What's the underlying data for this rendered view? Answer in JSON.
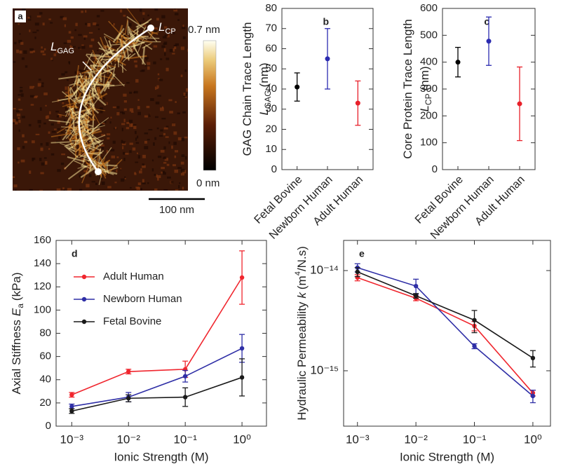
{
  "panel_a": {
    "panel_label": "a",
    "gag_label": {
      "symbol": "L",
      "subscript": "GAG"
    },
    "cp_label": {
      "symbol": "L",
      "subscript": "CP"
    },
    "colorbar_max": "0.7 nm",
    "colorbar_min": "0 nm",
    "scale_bar": "100 nm"
  },
  "chart_data": [
    {
      "type": "errorbar",
      "panel_label": "b",
      "categories": [
        "Fetal Bovine",
        "Newborn Human",
        "Adult Human"
      ],
      "values": [
        41,
        55,
        33
      ],
      "errors": [
        7,
        15,
        11
      ],
      "colors": [
        "#000000",
        "#2b2bb0",
        "#e8202a"
      ],
      "ylabel": {
        "text": "GAG Chain Trace Length",
        "symbol": "L",
        "subscript": "GAG",
        "unit": "(nm)"
      },
      "ylim": [
        0,
        80
      ],
      "yticks": [
        0,
        10,
        20,
        30,
        40,
        50,
        60,
        70,
        80
      ]
    },
    {
      "type": "errorbar",
      "panel_label": "c",
      "categories": [
        "Fetal Bovine",
        "Newborn Human",
        "Adult Human"
      ],
      "values": [
        400,
        478,
        245
      ],
      "errors": [
        55,
        90,
        137
      ],
      "colors": [
        "#000000",
        "#2b2bb0",
        "#e8202a"
      ],
      "ylabel": {
        "text": "Core Protein Trace Length",
        "symbol": "L",
        "subscript": "CP",
        "unit": "(nm)"
      },
      "ylim": [
        0,
        600
      ],
      "yticks": [
        0,
        100,
        200,
        300,
        400,
        500,
        600
      ]
    },
    {
      "type": "line",
      "panel_label": "d",
      "xlog": true,
      "x": [
        0.001,
        0.01,
        0.1,
        1
      ],
      "xlim": [
        0.00053,
        2.7
      ],
      "xticks": [
        {
          "value": 0.001,
          "label": "10⁻³"
        },
        {
          "value": 0.01,
          "label": "10⁻²"
        },
        {
          "value": 0.1,
          "label": "10⁻¹"
        },
        {
          "value": 1,
          "label": "10⁰"
        }
      ],
      "xlabel": "Ionic Strength (M)",
      "ylabel": {
        "text": "Axial Stiffness",
        "symbol": "E",
        "subscript": "a",
        "unit": "(kPa)"
      },
      "ylim": [
        0,
        160
      ],
      "yticks": [
        0,
        20,
        40,
        60,
        80,
        100,
        120,
        140,
        160
      ],
      "legend": "upper left",
      "series": [
        {
          "name": "Adult Human",
          "color": "#f0262e",
          "values": [
            27,
            47,
            49,
            128
          ],
          "errors": [
            2,
            2,
            7,
            23
          ]
        },
        {
          "name": "Newborn Human",
          "color": "#2e2ea6",
          "values": [
            17,
            25,
            43,
            67
          ],
          "errors": [
            2,
            4,
            5,
            12
          ]
        },
        {
          "name": "Fetal Bovine",
          "color": "#1a1a1a",
          "values": [
            13,
            24,
            25,
            42
          ],
          "errors": [
            2,
            3,
            8,
            16
          ]
        }
      ]
    },
    {
      "type": "line",
      "panel_label": "e",
      "xlog": true,
      "ylog": true,
      "x": [
        0.001,
        0.01,
        0.1,
        1
      ],
      "xlim": [
        0.00058,
        2.0
      ],
      "xticks": [
        {
          "value": 0.001,
          "label": "10⁻³"
        },
        {
          "value": 0.01,
          "label": "10⁻²"
        },
        {
          "value": 0.1,
          "label": "10⁻¹"
        },
        {
          "value": 1,
          "label": "10⁰"
        }
      ],
      "xlabel": "Ionic Strength (M)",
      "ylabel": {
        "text": "Hydraulic Permeability",
        "symbol": "k",
        "unit": "(m",
        "unit_superscript": "4",
        "unit_rest": "/N.s)"
      },
      "ylim": [
        2.8e-16,
        2e-14
      ],
      "yticks": [
        {
          "value": 1e-15,
          "label": "10⁻¹⁵"
        },
        {
          "value": 1e-14,
          "label": "10⁻¹⁴"
        }
      ],
      "series": [
        {
          "name": "Adult Human",
          "color": "#f0262e",
          "values": [
            8.5e-15,
            5.3e-15,
            2.8e-15,
            6e-16
          ],
          "errors": [
            6e-16,
            3e-16,
            3e-16,
            4e-17
          ]
        },
        {
          "name": "Newborn Human",
          "color": "#2e2ea6",
          "values": [
            1.07e-14,
            7e-15,
            1.76e-15,
            5.6e-16
          ],
          "errors": [
            1e-15,
            1.2e-15,
            1e-16,
            8e-17
          ]
        },
        {
          "name": "Fetal Bovine",
          "color": "#1a1a1a",
          "values": [
            9.7e-15,
            5.6e-15,
            3.2e-15,
            1.34e-15
          ],
          "errors": [
            1e-15,
            3e-16,
            8e-16,
            2.5e-16
          ]
        }
      ]
    }
  ]
}
